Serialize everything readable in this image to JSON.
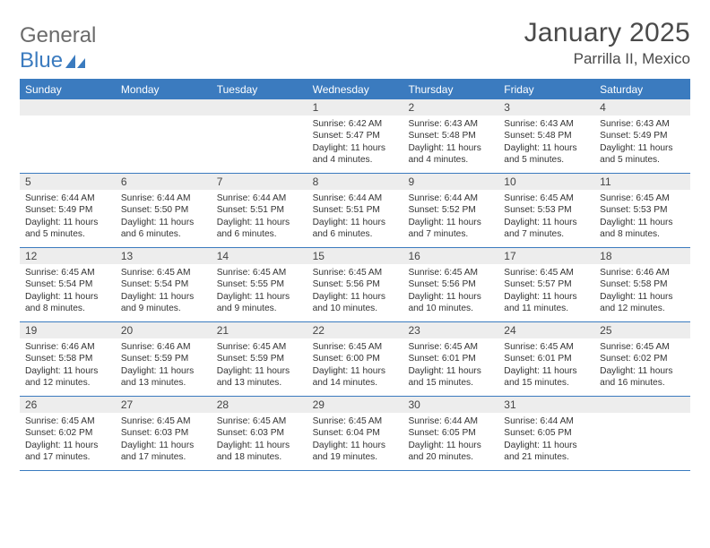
{
  "logo": {
    "general": "General",
    "blue": "Blue"
  },
  "title": {
    "month": "January 2025",
    "location": "Parrilla II, Mexico"
  },
  "colors": {
    "accent": "#3b7bbf",
    "daynum_bg": "#ededed",
    "text": "#333333",
    "logo_gray": "#6b6b6b"
  },
  "dayHeaders": [
    "Sunday",
    "Monday",
    "Tuesday",
    "Wednesday",
    "Thursday",
    "Friday",
    "Saturday"
  ],
  "weeks": [
    [
      {
        "empty": true
      },
      {
        "empty": true
      },
      {
        "empty": true
      },
      {
        "day": "1",
        "sunrise": "6:42 AM",
        "sunset": "5:47 PM",
        "daylight": "11 hours and 4 minutes."
      },
      {
        "day": "2",
        "sunrise": "6:43 AM",
        "sunset": "5:48 PM",
        "daylight": "11 hours and 4 minutes."
      },
      {
        "day": "3",
        "sunrise": "6:43 AM",
        "sunset": "5:48 PM",
        "daylight": "11 hours and 5 minutes."
      },
      {
        "day": "4",
        "sunrise": "6:43 AM",
        "sunset": "5:49 PM",
        "daylight": "11 hours and 5 minutes."
      }
    ],
    [
      {
        "day": "5",
        "sunrise": "6:44 AM",
        "sunset": "5:49 PM",
        "daylight": "11 hours and 5 minutes."
      },
      {
        "day": "6",
        "sunrise": "6:44 AM",
        "sunset": "5:50 PM",
        "daylight": "11 hours and 6 minutes."
      },
      {
        "day": "7",
        "sunrise": "6:44 AM",
        "sunset": "5:51 PM",
        "daylight": "11 hours and 6 minutes."
      },
      {
        "day": "8",
        "sunrise": "6:44 AM",
        "sunset": "5:51 PM",
        "daylight": "11 hours and 6 minutes."
      },
      {
        "day": "9",
        "sunrise": "6:44 AM",
        "sunset": "5:52 PM",
        "daylight": "11 hours and 7 minutes."
      },
      {
        "day": "10",
        "sunrise": "6:45 AM",
        "sunset": "5:53 PM",
        "daylight": "11 hours and 7 minutes."
      },
      {
        "day": "11",
        "sunrise": "6:45 AM",
        "sunset": "5:53 PM",
        "daylight": "11 hours and 8 minutes."
      }
    ],
    [
      {
        "day": "12",
        "sunrise": "6:45 AM",
        "sunset": "5:54 PM",
        "daylight": "11 hours and 8 minutes."
      },
      {
        "day": "13",
        "sunrise": "6:45 AM",
        "sunset": "5:54 PM",
        "daylight": "11 hours and 9 minutes."
      },
      {
        "day": "14",
        "sunrise": "6:45 AM",
        "sunset": "5:55 PM",
        "daylight": "11 hours and 9 minutes."
      },
      {
        "day": "15",
        "sunrise": "6:45 AM",
        "sunset": "5:56 PM",
        "daylight": "11 hours and 10 minutes."
      },
      {
        "day": "16",
        "sunrise": "6:45 AM",
        "sunset": "5:56 PM",
        "daylight": "11 hours and 10 minutes."
      },
      {
        "day": "17",
        "sunrise": "6:45 AM",
        "sunset": "5:57 PM",
        "daylight": "11 hours and 11 minutes."
      },
      {
        "day": "18",
        "sunrise": "6:46 AM",
        "sunset": "5:58 PM",
        "daylight": "11 hours and 12 minutes."
      }
    ],
    [
      {
        "day": "19",
        "sunrise": "6:46 AM",
        "sunset": "5:58 PM",
        "daylight": "11 hours and 12 minutes."
      },
      {
        "day": "20",
        "sunrise": "6:46 AM",
        "sunset": "5:59 PM",
        "daylight": "11 hours and 13 minutes."
      },
      {
        "day": "21",
        "sunrise": "6:45 AM",
        "sunset": "5:59 PM",
        "daylight": "11 hours and 13 minutes."
      },
      {
        "day": "22",
        "sunrise": "6:45 AM",
        "sunset": "6:00 PM",
        "daylight": "11 hours and 14 minutes."
      },
      {
        "day": "23",
        "sunrise": "6:45 AM",
        "sunset": "6:01 PM",
        "daylight": "11 hours and 15 minutes."
      },
      {
        "day": "24",
        "sunrise": "6:45 AM",
        "sunset": "6:01 PM",
        "daylight": "11 hours and 15 minutes."
      },
      {
        "day": "25",
        "sunrise": "6:45 AM",
        "sunset": "6:02 PM",
        "daylight": "11 hours and 16 minutes."
      }
    ],
    [
      {
        "day": "26",
        "sunrise": "6:45 AM",
        "sunset": "6:02 PM",
        "daylight": "11 hours and 17 minutes."
      },
      {
        "day": "27",
        "sunrise": "6:45 AM",
        "sunset": "6:03 PM",
        "daylight": "11 hours and 17 minutes."
      },
      {
        "day": "28",
        "sunrise": "6:45 AM",
        "sunset": "6:03 PM",
        "daylight": "11 hours and 18 minutes."
      },
      {
        "day": "29",
        "sunrise": "6:45 AM",
        "sunset": "6:04 PM",
        "daylight": "11 hours and 19 minutes."
      },
      {
        "day": "30",
        "sunrise": "6:44 AM",
        "sunset": "6:05 PM",
        "daylight": "11 hours and 20 minutes."
      },
      {
        "day": "31",
        "sunrise": "6:44 AM",
        "sunset": "6:05 PM",
        "daylight": "11 hours and 21 minutes."
      },
      {
        "empty": true
      }
    ]
  ],
  "labels": {
    "sunrise": "Sunrise: ",
    "sunset": "Sunset: ",
    "daylight": "Daylight: "
  }
}
